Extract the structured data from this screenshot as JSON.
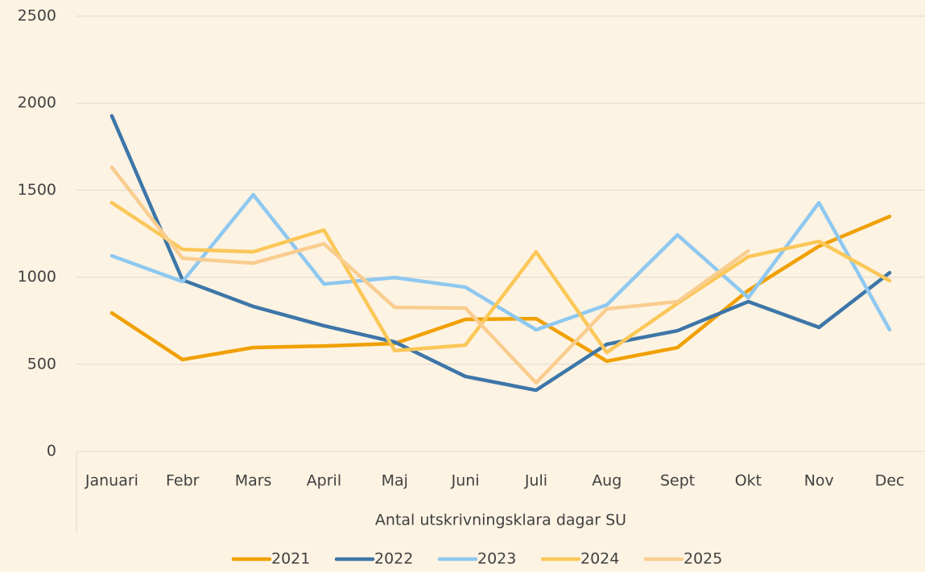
{
  "chart_data": {
    "type": "line",
    "x_axis_label": "Antal utskrivningsklara dagar SU",
    "categories": [
      "Januari",
      "Febr",
      "Mars",
      "April",
      "Maj",
      "Juni",
      "Juli",
      "Aug",
      "Sept",
      "Okt",
      "Nov",
      "Dec"
    ],
    "series": [
      {
        "name": "2021",
        "color": "#f0a000",
        "values": [
          795,
          527,
          596,
          605,
          619,
          758,
          762,
          518,
          596,
          924,
          1178,
          1349
        ]
      },
      {
        "name": "2022",
        "color": "#3d76a8",
        "values": [
          1927,
          984,
          832,
          721,
          628,
          430,
          351,
          615,
          693,
          860,
          712,
          1026
        ]
      },
      {
        "name": "2023",
        "color": "#8ec8f0",
        "values": [
          1123,
          975,
          1474,
          961,
          998,
          943,
          698,
          841,
          1243,
          883,
          1428,
          698
        ]
      },
      {
        "name": "2024",
        "color": "#fbc758",
        "values": [
          1428,
          1160,
          1146,
          1271,
          578,
          610,
          1146,
          568,
          850,
          1118,
          1206,
          980
        ]
      },
      {
        "name": "2025",
        "color": "#f9cd8f",
        "values": [
          1631,
          1109,
          1081,
          1192,
          827,
          823,
          393,
          818,
          860,
          1151,
          null,
          null
        ]
      }
    ],
    "ylim": [
      0,
      2500
    ],
    "yticks": [
      0,
      500,
      1000,
      1500,
      2000,
      2500
    ],
    "grid": true,
    "legend": "bottom"
  }
}
